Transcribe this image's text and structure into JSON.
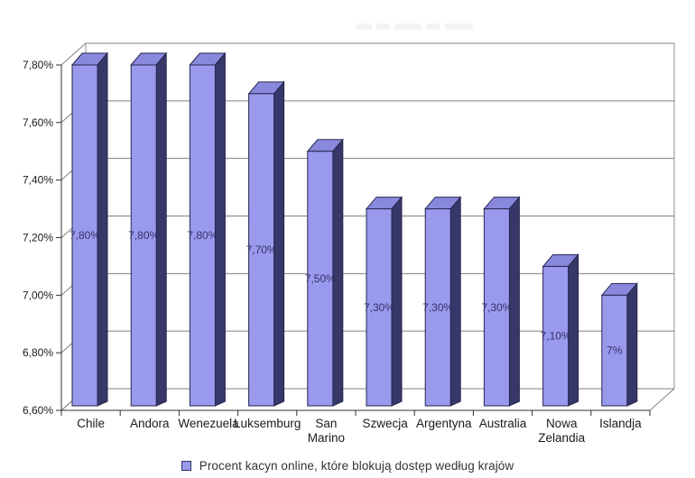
{
  "chart_data": {
    "type": "bar",
    "projection": "3d",
    "title": "",
    "categories": [
      "Chile",
      "Andora",
      "Wenezuela",
      "Luksemburg",
      "San Marino",
      "Szwecja",
      "Argentyna",
      "Australia",
      "Nowa Zelandia",
      "Islandja"
    ],
    "values": [
      7.8,
      7.8,
      7.8,
      7.7,
      7.5,
      7.3,
      7.3,
      7.3,
      7.1,
      7.0
    ],
    "bar_labels": [
      "7,80%",
      "7,80%",
      "7,80%",
      "7,70%",
      "7,50%",
      "7,30%",
      "7,30%",
      "7,30%",
      "7,10%",
      "7%"
    ],
    "xlabel": "",
    "ylabel": "",
    "ylim": [
      6.6,
      7.8
    ],
    "y_ticks": [
      {
        "value": 7.8,
        "label": "7,80%"
      },
      {
        "value": 7.6,
        "label": "7,60%"
      },
      {
        "value": 7.4,
        "label": "7,40%"
      },
      {
        "value": 7.2,
        "label": "7,20%"
      },
      {
        "value": 7.0,
        "label": "7,00%"
      },
      {
        "value": 6.8,
        "label": "6,80%"
      },
      {
        "value": 6.6,
        "label": "6,60%"
      }
    ],
    "grid": true,
    "legend": {
      "position": "bottom",
      "label": "Procent kacyn online, które blokują dostęp według krajów"
    },
    "colors": {
      "bar_front": "#9999ee",
      "bar_top": "#8888dd",
      "bar_side": "#373769",
      "bar_outline": "#26264f",
      "bar_value_text": "#333366",
      "grid_line": "#808080",
      "wall_border": "#909090",
      "axis_line": "#303030",
      "tick_text": "#1a1a1a",
      "category_text": "#1a1a1a"
    }
  }
}
